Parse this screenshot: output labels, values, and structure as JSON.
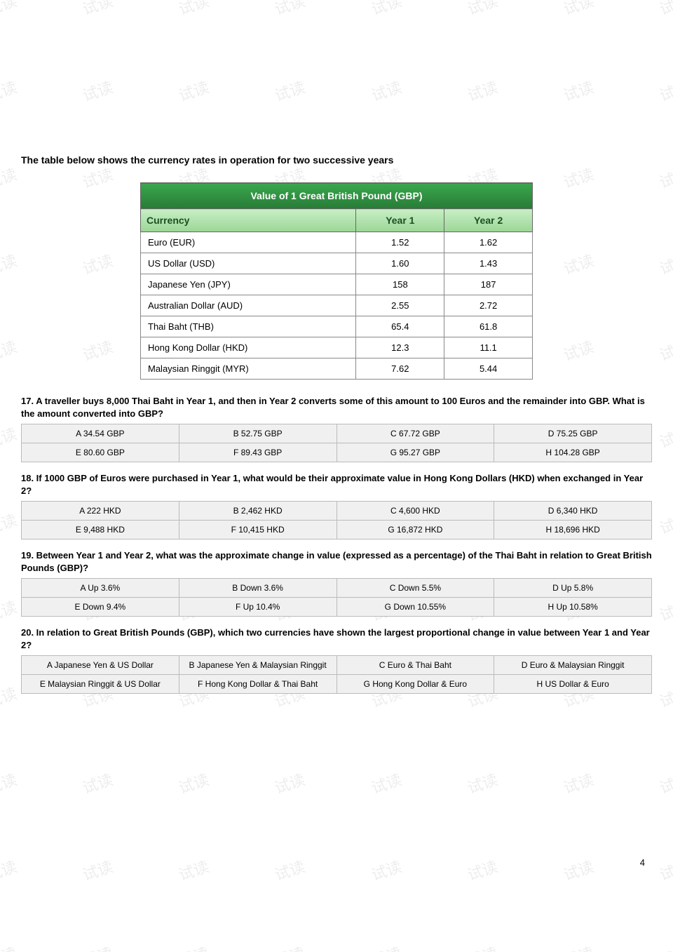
{
  "watermark_text": "试读",
  "intro_text": "The table below shows the currency rates in operation for two successive years",
  "table": {
    "title": "Value of 1 Great British Pound (GBP)",
    "columns": [
      "Currency",
      "Year 1",
      "Year 2"
    ],
    "rows": [
      [
        "Euro (EUR)",
        "1.52",
        "1.62"
      ],
      [
        "US Dollar (USD)",
        "1.60",
        "1.43"
      ],
      [
        "Japanese Yen (JPY)",
        "158",
        "187"
      ],
      [
        "Australian Dollar (AUD)",
        "2.55",
        "2.72"
      ],
      [
        "Thai Baht (THB)",
        "65.4",
        "61.8"
      ],
      [
        "Hong Kong Dollar (HKD)",
        "12.3",
        "11.1"
      ],
      [
        "Malaysian Ringgit (MYR)",
        "7.62",
        "5.44"
      ]
    ]
  },
  "questions": [
    {
      "prompt": "17.  A traveller buys 8,000 Thai Baht in Year 1, and then in Year 2 converts some of this amount to 100 Euros and the remainder into GBP. What is the amount converted into GBP?",
      "options": [
        "A  34.54 GBP",
        "B  52.75 GBP",
        "C  67.72 GBP",
        "D  75.25 GBP",
        "E  80.60 GBP",
        "F  89.43 GBP",
        "G  95.27 GBP",
        "H  104.28 GBP"
      ]
    },
    {
      "prompt": "18.  If 1000 GBP of Euros were purchased in Year 1, what would be their approximate value in Hong Kong Dollars (HKD) when exchanged in Year 2?",
      "options": [
        "A  222 HKD",
        "B  2,462 HKD",
        "C  4,600 HKD",
        "D  6,340 HKD",
        "E  9,488 HKD",
        "F  10,415 HKD",
        "G  16,872 HKD",
        "H  18,696 HKD"
      ]
    },
    {
      "prompt": "19.  Between Year 1 and Year 2, what was the approximate change in value (expressed as a percentage) of the Thai Baht in relation to Great British Pounds (GBP)?",
      "options": [
        "A  Up 3.6%",
        "B  Down 3.6%",
        "C  Down 5.5%",
        "D  Up 5.8%",
        "E  Down 9.4%",
        "F  Up 10.4%",
        "G  Down 10.55%",
        "H  Up 10.58%"
      ]
    },
    {
      "prompt": "20.  In relation to Great British Pounds (GBP), which two currencies have shown the largest proportional change in value between Year 1 and Year 2?",
      "options": [
        "A  Japanese Yen & US Dollar",
        "B  Japanese Yen & Malaysian Ringgit",
        "C  Euro & Thai Baht",
        "D  Euro & Malaysian Ringgit",
        "E  Malaysian Ringgit & US Dollar",
        "F  Hong Kong Dollar & Thai Baht",
        "G  Hong Kong Dollar & Euro",
        "H  US Dollar & Euro"
      ]
    }
  ],
  "page_number": "4"
}
